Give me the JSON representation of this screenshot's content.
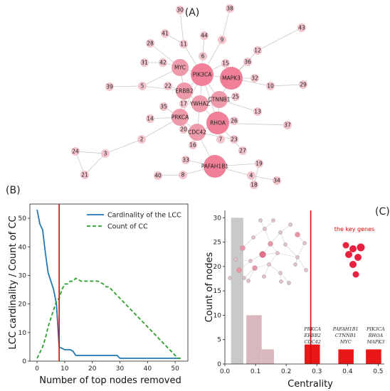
{
  "panel_labels": {
    "a": "(A)",
    "b": "(B)",
    "c": "(C)"
  },
  "colors": {
    "node_light": "#f2c4cc",
    "node_mid": "#ee9aab",
    "node_dark": "#f07f97",
    "edge": "#c8c8c8",
    "line_lcc": "#1f77b4",
    "line_cc": "#2ca02c",
    "threshold": "#e00000",
    "bar_gray": "#c9c9c9",
    "bar_rose": "#d8b8bc",
    "bar_red": "#e81818"
  },
  "network": {
    "nodes": [
      {
        "id": "30",
        "label": "30",
        "size": "small"
      },
      {
        "id": "38",
        "label": "38",
        "size": "small"
      },
      {
        "id": "43",
        "label": "43",
        "size": "small"
      },
      {
        "id": "41",
        "label": "41",
        "size": "small"
      },
      {
        "id": "11",
        "label": "11",
        "size": "small"
      },
      {
        "id": "44",
        "label": "44",
        "size": "small"
      },
      {
        "id": "9",
        "label": "9",
        "size": "small"
      },
      {
        "id": "28",
        "label": "28",
        "size": "small"
      },
      {
        "id": "12",
        "label": "12",
        "size": "small"
      },
      {
        "id": "6",
        "label": "6",
        "size": "small"
      },
      {
        "id": "31",
        "label": "31",
        "size": "small"
      },
      {
        "id": "42",
        "label": "42",
        "size": "small"
      },
      {
        "id": "MYC",
        "label": "MYC",
        "size": "medium"
      },
      {
        "id": "PIK3CA",
        "label": "PIK3CA",
        "size": "large"
      },
      {
        "id": "15",
        "label": "15",
        "size": "small"
      },
      {
        "id": "36",
        "label": "36",
        "size": "small"
      },
      {
        "id": "MAPK3",
        "label": "MAPK3",
        "size": "large"
      },
      {
        "id": "32",
        "label": "32",
        "size": "small"
      },
      {
        "id": "10",
        "label": "10",
        "size": "small"
      },
      {
        "id": "29",
        "label": "29",
        "size": "small"
      },
      {
        "id": "39",
        "label": "39",
        "size": "small"
      },
      {
        "id": "5",
        "label": "5",
        "size": "small"
      },
      {
        "id": "22",
        "label": "22",
        "size": "small"
      },
      {
        "id": "ERBB2",
        "label": "ERBB2",
        "size": "medium"
      },
      {
        "id": "25",
        "label": "25",
        "size": "small"
      },
      {
        "id": "CTNNB1",
        "label": "CTNNB1",
        "size": "medium"
      },
      {
        "id": "35",
        "label": "35",
        "size": "small"
      },
      {
        "id": "17",
        "label": "17",
        "size": "small"
      },
      {
        "id": "YWHAZ",
        "label": "YWHAZ",
        "size": "medium"
      },
      {
        "id": "13",
        "label": "13",
        "size": "small"
      },
      {
        "id": "14",
        "label": "14",
        "size": "small"
      },
      {
        "id": "PRKCA",
        "label": "PRKCA",
        "size": "medium"
      },
      {
        "id": "RHOA",
        "label": "RHOA",
        "size": "large"
      },
      {
        "id": "26",
        "label": "26",
        "size": "small"
      },
      {
        "id": "37",
        "label": "37",
        "size": "small"
      },
      {
        "id": "20",
        "label": "20",
        "size": "small"
      },
      {
        "id": "CDC42",
        "label": "CDC42",
        "size": "medium"
      },
      {
        "id": "2",
        "label": "2",
        "size": "small"
      },
      {
        "id": "7",
        "label": "7",
        "size": "small"
      },
      {
        "id": "23",
        "label": "23",
        "size": "small"
      },
      {
        "id": "16",
        "label": "16",
        "size": "small"
      },
      {
        "id": "27",
        "label": "27",
        "size": "small"
      },
      {
        "id": "24",
        "label": "24",
        "size": "small"
      },
      {
        "id": "3",
        "label": "3",
        "size": "small"
      },
      {
        "id": "33",
        "label": "33",
        "size": "small"
      },
      {
        "id": "19",
        "label": "19",
        "size": "small"
      },
      {
        "id": "PAFAH1B1",
        "label": "PAFAH1B1",
        "size": "large"
      },
      {
        "id": "40",
        "label": "40",
        "size": "small"
      },
      {
        "id": "8",
        "label": "8",
        "size": "small"
      },
      {
        "id": "4",
        "label": "4",
        "size": "small"
      },
      {
        "id": "34",
        "label": "34",
        "size": "small"
      },
      {
        "id": "21",
        "label": "21",
        "size": "small"
      },
      {
        "id": "18",
        "label": "18",
        "size": "small"
      }
    ],
    "edges": [
      [
        "30",
        "11"
      ],
      [
        "41",
        "11"
      ],
      [
        "11",
        "PIK3CA"
      ],
      [
        "44",
        "6"
      ],
      [
        "6",
        "PIK3CA"
      ],
      [
        "38",
        "9"
      ],
      [
        "9",
        "PIK3CA"
      ],
      [
        "43",
        "12"
      ],
      [
        "12",
        "MAPK3"
      ],
      [
        "28",
        "MYC"
      ],
      [
        "31",
        "42"
      ],
      [
        "42",
        "MYC"
      ],
      [
        "MYC",
        "PIK3CA"
      ],
      [
        "MYC",
        "ERBB2"
      ],
      [
        "MYC",
        "5"
      ],
      [
        "PIK3CA",
        "MAPK3"
      ],
      [
        "PIK3CA",
        "15"
      ],
      [
        "36",
        "MAPK3"
      ],
      [
        "MAPK3",
        "32"
      ],
      [
        "10",
        "29"
      ],
      [
        "10",
        "MAPK3"
      ],
      [
        "39",
        "5"
      ],
      [
        "5",
        "ERBB2"
      ],
      [
        "22",
        "ERBB2"
      ],
      [
        "ERBB2",
        "PIK3CA"
      ],
      [
        "ERBB2",
        "YWHAZ"
      ],
      [
        "ERBB2",
        "PRKCA"
      ],
      [
        "YWHAZ",
        "PIK3CA"
      ],
      [
        "YWHAZ",
        "CTNNB1"
      ],
      [
        "YWHAZ",
        "RHOA"
      ],
      [
        "YWHAZ",
        "CDC42"
      ],
      [
        "YWHAZ",
        "17"
      ],
      [
        "CTNNB1",
        "25"
      ],
      [
        "CTNNB1",
        "PIK3CA"
      ],
      [
        "CTNNB1",
        "MAPK3"
      ],
      [
        "CTNNB1",
        "13"
      ],
      [
        "CTNNB1",
        "RHOA"
      ],
      [
        "35",
        "PRKCA"
      ],
      [
        "14",
        "PRKCA"
      ],
      [
        "PRKCA",
        "CDC42"
      ],
      [
        "PRKCA",
        "2"
      ],
      [
        "RHOA",
        "26"
      ],
      [
        "RHOA",
        "CDC42"
      ],
      [
        "RHOA",
        "37"
      ],
      [
        "RHOA",
        "7"
      ],
      [
        "RHOA",
        "27"
      ],
      [
        "20",
        "CDC42"
      ],
      [
        "CDC42",
        "16"
      ],
      [
        "CDC42",
        "23"
      ],
      [
        "CDC42",
        "PAFAH1B1"
      ],
      [
        "2",
        "3"
      ],
      [
        "3",
        "24"
      ],
      [
        "3",
        "21"
      ],
      [
        "24",
        "21"
      ],
      [
        "33",
        "PAFAH1B1"
      ],
      [
        "PAFAH1B1",
        "19"
      ],
      [
        "PAFAH1B1",
        "8"
      ],
      [
        "PAFAH1B1",
        "4"
      ],
      [
        "40",
        "8"
      ],
      [
        "4",
        "34"
      ],
      [
        "4",
        "18"
      ],
      [
        "19",
        "18"
      ],
      [
        "PRKCA",
        "PIK3CA"
      ],
      [
        "RHOA",
        "PIK3CA"
      ]
    ]
  },
  "chart_data": [
    {
      "type": "line",
      "x": [
        0,
        1,
        2,
        3,
        4,
        5,
        6,
        7,
        8,
        9,
        10,
        11,
        12,
        13,
        14,
        15,
        16,
        17,
        18,
        19,
        20,
        21,
        22,
        23,
        24,
        25,
        26,
        27,
        28,
        29,
        30,
        31,
        32,
        33,
        34,
        35,
        36,
        37,
        38,
        39,
        40,
        41,
        42,
        43,
        44,
        45,
        46,
        47,
        48,
        49,
        50,
        51,
        52
      ],
      "series": [
        {
          "name": "Cardinality of the LCC",
          "values": [
            53,
            48,
            46,
            38,
            31,
            28,
            25,
            20,
            5,
            4.5,
            4,
            4,
            4,
            3.5,
            2,
            2,
            2,
            2,
            2,
            2,
            2,
            2,
            2,
            2,
            2,
            2,
            2,
            2,
            2,
            2,
            1,
            1,
            1,
            1,
            1,
            1,
            1,
            1,
            1,
            1,
            1,
            1,
            1,
            1,
            1,
            1,
            1,
            1,
            1,
            1,
            1,
            1,
            1
          ],
          "style": "solid"
        },
        {
          "name": "Count of CC",
          "values": [
            1,
            3,
            5,
            8,
            12,
            15,
            18,
            21,
            22,
            25,
            27,
            27,
            28,
            28,
            29,
            28.5,
            28,
            28,
            28,
            28,
            28,
            28,
            28,
            27.5,
            27,
            26,
            26,
            25,
            24,
            23,
            22,
            21,
            20,
            19,
            18,
            17,
            16,
            15,
            14,
            13,
            12,
            11,
            10,
            9,
            8,
            7,
            6,
            5,
            4,
            3,
            2,
            1,
            1
          ],
          "style": "dashed"
        }
      ],
      "xlabel": "Number of top nodes removed",
      "ylabel": "LCC cardinality / Count of CC",
      "xlim": [
        -2.6,
        54.6
      ],
      "ylim": [
        0,
        55
      ],
      "xticks": [
        0,
        10,
        20,
        30,
        40,
        50
      ],
      "yticks": [
        0,
        10,
        20,
        30,
        40,
        50
      ],
      "threshold_x": 8,
      "legend_position": "top-right"
    },
    {
      "type": "bar",
      "bins": [
        {
          "x0": 0.02,
          "x1": 0.06,
          "count": 30,
          "color_key": "bar_gray"
        },
        {
          "x0": 0.07,
          "x1": 0.12,
          "count": 10,
          "color_key": "bar_rose"
        },
        {
          "x0": 0.12,
          "x1": 0.16,
          "count": 3,
          "color_key": "bar_rose"
        },
        {
          "x0": 0.26,
          "x1": 0.31,
          "count": 4,
          "color_key": "bar_red"
        },
        {
          "x0": 0.37,
          "x1": 0.42,
          "count": 3,
          "color_key": "bar_red"
        },
        {
          "x0": 0.46,
          "x1": 0.51,
          "count": 3,
          "color_key": "bar_red"
        }
      ],
      "gene_labels": [
        {
          "x": 0.286,
          "lines": [
            "PRKCA",
            "ERBB2",
            "CDC42"
          ]
        },
        {
          "x": 0.394,
          "lines": [
            "PAFAH1B1",
            "CTNNB1",
            "MYC"
          ]
        },
        {
          "x": 0.492,
          "lines": [
            "PIK3CA",
            "RHOA",
            "MAPK3"
          ]
        }
      ],
      "annotation": "the key genes",
      "threshold_x": 0.28,
      "xlabel": "Centrality",
      "ylabel": "Count of nodes",
      "xlim": [
        0,
        0.52
      ],
      "ylim": [
        0,
        31.5
      ],
      "xticks": [
        0.0,
        0.1,
        0.2,
        0.3,
        0.4,
        0.5
      ],
      "yticks": [
        0,
        5,
        10,
        15,
        20,
        25,
        30
      ]
    }
  ]
}
